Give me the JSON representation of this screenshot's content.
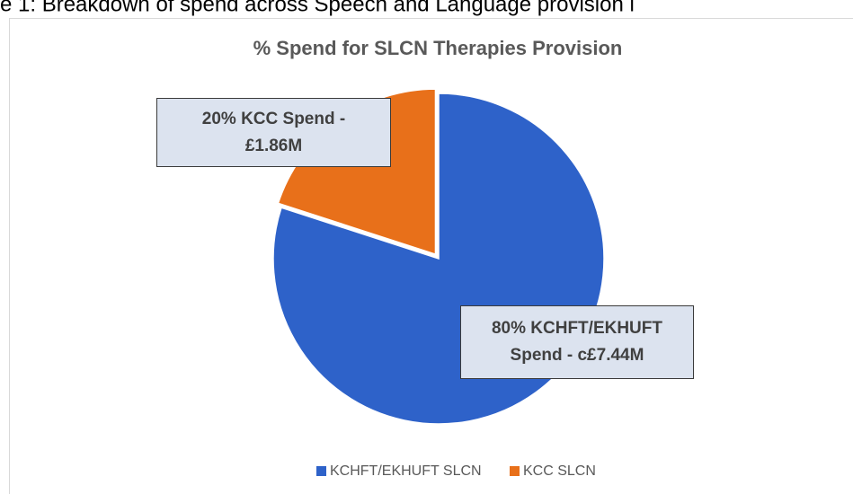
{
  "caption": "e 1: Breakdown of spend across Speech and Language provision i",
  "chart_data": {
    "type": "pie",
    "title": "% Spend for SLCN Therapies Provision",
    "categories": [
      "KCHFT/EKHUFT SLCN",
      "KCC SLCN"
    ],
    "values": [
      80,
      20
    ],
    "value_labels": [
      "80% KCHFT/EKHUFT Spend - c£7.44M",
      "20% KCC Spend - £1.86M"
    ],
    "colors": [
      "#2e62c9",
      "#e8701a"
    ],
    "legend": "bottom"
  }
}
